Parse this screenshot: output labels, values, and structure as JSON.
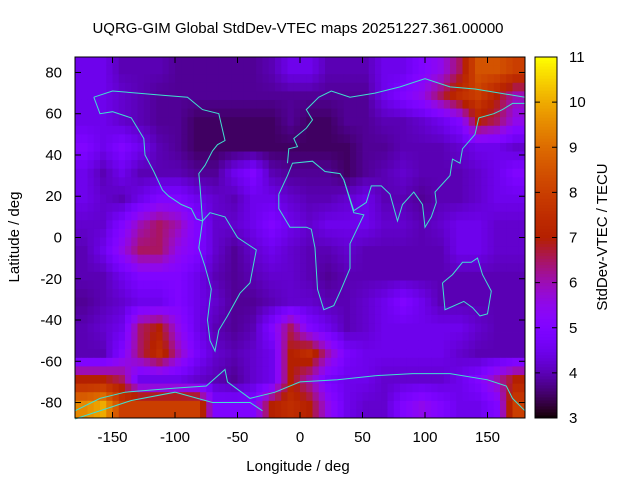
{
  "chart_data": {
    "type": "heatmap",
    "title": "UQRG-GIM Global StdDev-VTEC maps 20251227.361.00000",
    "xlabel": "Longitude / deg",
    "ylabel": "Latitude / deg",
    "colorbar_label": "StdDev-VTEC / TECU",
    "xlim": [
      -180,
      180
    ],
    "ylim": [
      -87.5,
      87.5
    ],
    "clim": [
      3,
      11
    ],
    "xticks": [
      -150,
      -100,
      -50,
      0,
      50,
      100,
      150
    ],
    "yticks": [
      -80,
      -60,
      -40,
      -20,
      0,
      20,
      40,
      60,
      80
    ],
    "cticks": [
      3,
      4,
      5,
      6,
      7,
      8,
      9,
      10,
      11
    ],
    "palette": "black-purple-red-yellow",
    "coastline_color": "#40e0d0",
    "grid": false,
    "lon_centers": [
      -172.5,
      -157.5,
      -142.5,
      -127.5,
      -112.5,
      -97.5,
      -82.5,
      -67.5,
      -52.5,
      -37.5,
      -22.5,
      -7.5,
      7.5,
      22.5,
      37.5,
      52.5,
      67.5,
      82.5,
      97.5,
      112.5,
      127.5,
      142.5,
      157.5,
      172.5
    ],
    "lat_centers": [
      81,
      69,
      56,
      44,
      31,
      19,
      6,
      -6,
      -19,
      -31,
      -44,
      -56,
      -69,
      -81
    ],
    "values": [
      [
        4.5,
        4.5,
        4,
        4,
        4,
        3.8,
        3.8,
        3.8,
        3.8,
        3.8,
        4,
        4.5,
        4.5,
        4,
        4,
        4,
        4.5,
        4.5,
        5,
        5.5,
        6.5,
        8.5,
        8.5,
        8
      ],
      [
        4.5,
        4.5,
        4.2,
        4,
        3.8,
        3.8,
        3.8,
        3.8,
        3.8,
        3.8,
        3.8,
        3.8,
        3.8,
        3.8,
        3.8,
        3.8,
        4.5,
        5,
        5.5,
        6.5,
        7.5,
        8,
        7,
        6
      ],
      [
        4.5,
        4.5,
        4.2,
        4,
        3.8,
        3.8,
        3.5,
        3.5,
        3.5,
        3.5,
        3.5,
        3.8,
        3.5,
        3.5,
        3.8,
        3.8,
        4,
        4,
        4.2,
        4.5,
        5,
        7,
        6.5,
        5.5
      ],
      [
        5,
        4.5,
        5,
        4.5,
        4,
        3.8,
        3.5,
        3.5,
        3.5,
        3.5,
        3.5,
        3.5,
        3.5,
        3.5,
        3.5,
        3.8,
        3.8,
        4,
        4,
        4,
        4.2,
        4.5,
        4.5,
        4.2
      ],
      [
        4.5,
        4,
        4.5,
        4,
        4,
        4,
        3.8,
        3.8,
        4.5,
        5,
        4,
        3.8,
        3.8,
        3.8,
        3.5,
        3.8,
        4,
        4.2,
        4,
        4,
        4,
        4.2,
        4.5,
        5
      ],
      [
        4.5,
        4.2,
        4,
        4.5,
        5,
        5,
        4.5,
        4.2,
        4,
        4.5,
        4.5,
        4.2,
        4,
        4,
        4.2,
        4.5,
        4,
        4,
        3.8,
        4,
        4,
        4.2,
        4.5,
        4.5
      ],
      [
        4.2,
        4.2,
        5,
        6,
        6.5,
        6,
        5,
        4.2,
        4.2,
        4.5,
        5,
        4.5,
        4.2,
        4.5,
        4.5,
        4.5,
        4.2,
        4.2,
        4,
        4.2,
        4.5,
        4.5,
        4.2,
        4.2
      ],
      [
        4,
        4.5,
        5.5,
        6.5,
        6.5,
        5.5,
        5,
        4.2,
        3.8,
        4.2,
        4.5,
        4.2,
        4,
        4,
        4.2,
        4,
        4,
        4,
        4,
        4,
        4.5,
        4.5,
        4.2,
        4.2
      ],
      [
        4,
        4,
        4.5,
        5,
        5,
        5,
        4.5,
        4,
        3.8,
        4,
        4.2,
        4.2,
        4,
        3.8,
        4,
        4,
        4,
        4,
        4,
        4,
        4,
        4,
        4,
        4
      ],
      [
        3.8,
        4,
        4.2,
        4.5,
        4.5,
        5,
        4.5,
        4.2,
        3.8,
        3.8,
        4,
        4.2,
        4.2,
        4,
        4,
        4.2,
        4.5,
        5,
        4.5,
        4,
        4,
        4,
        4,
        4
      ],
      [
        4,
        4.2,
        4.5,
        6.5,
        7,
        5.5,
        4.5,
        4,
        3.8,
        4,
        5,
        6.5,
        5,
        4.5,
        4,
        4.2,
        4.5,
        4.5,
        4.5,
        4.5,
        4.5,
        4.2,
        4,
        4
      ],
      [
        4,
        4,
        5,
        6.5,
        7.5,
        6,
        4.8,
        4.2,
        4,
        4.2,
        4.5,
        7,
        7.5,
        6,
        4.8,
        4.5,
        4.5,
        4.5,
        4.5,
        4.5,
        4.2,
        4,
        4,
        4
      ],
      [
        7,
        7,
        6.5,
        4.5,
        4.5,
        4.5,
        4.2,
        4,
        3.8,
        4.2,
        4.5,
        7,
        6,
        4.8,
        4.5,
        4.5,
        4.2,
        4.2,
        4.2,
        4.2,
        4.5,
        5,
        6,
        7
      ],
      [
        9.5,
        10,
        8,
        8,
        8,
        8,
        8,
        5,
        5,
        5,
        7,
        7.5,
        7,
        5.5,
        4.5,
        4.2,
        4.2,
        5,
        5.5,
        5,
        4.5,
        4.5,
        5,
        8
      ]
    ]
  }
}
